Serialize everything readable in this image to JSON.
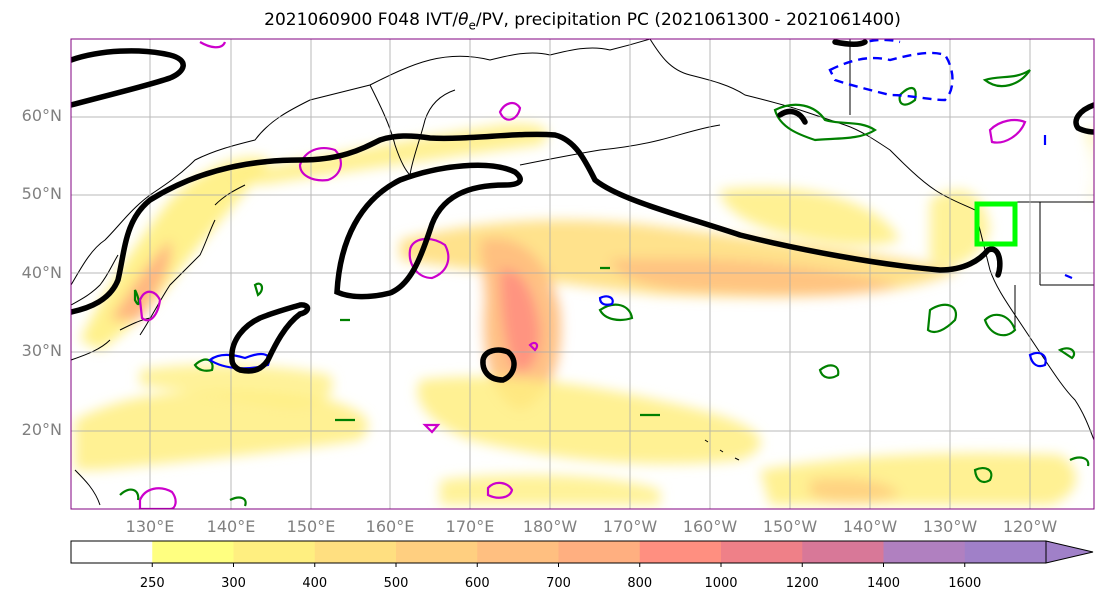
{
  "title": {
    "before": "2021060900 F048 IVT/",
    "theta": "θ",
    "theta_sub": "e",
    "after": "/PV, precipitation PC (2021061300 - 2021061400)"
  },
  "lat_labels": [
    "60°N",
    "50°N",
    "40°N",
    "30°N",
    "20°N"
  ],
  "lon_labels": [
    "130°E",
    "140°E",
    "150°E",
    "160°E",
    "170°E",
    "180°W",
    "170°W",
    "160°W",
    "150°W",
    "140°W",
    "130°W",
    "120°W"
  ],
  "colorbar": {
    "levels": [
      "250",
      "300",
      "400",
      "500",
      "600",
      "700",
      "800",
      "1000",
      "1200",
      "1400",
      "1600"
    ],
    "colors": [
      "#ffffff",
      "#ffff80",
      "#ffef80",
      "#ffdf80",
      "#ffcf80",
      "#ffbf80",
      "#ffaf80",
      "#ff8f80",
      "#ef8088",
      "#d87898",
      "#b080c0",
      "#a080c8"
    ]
  },
  "colors": {
    "contour": "#000000",
    "green_contour": "#008000",
    "magenta_contour": "#cc00cc",
    "blue_contour": "#0000ff",
    "highlight_box": "#00ff00",
    "frame": "#800080",
    "gridline": "#a9a9a9"
  }
}
